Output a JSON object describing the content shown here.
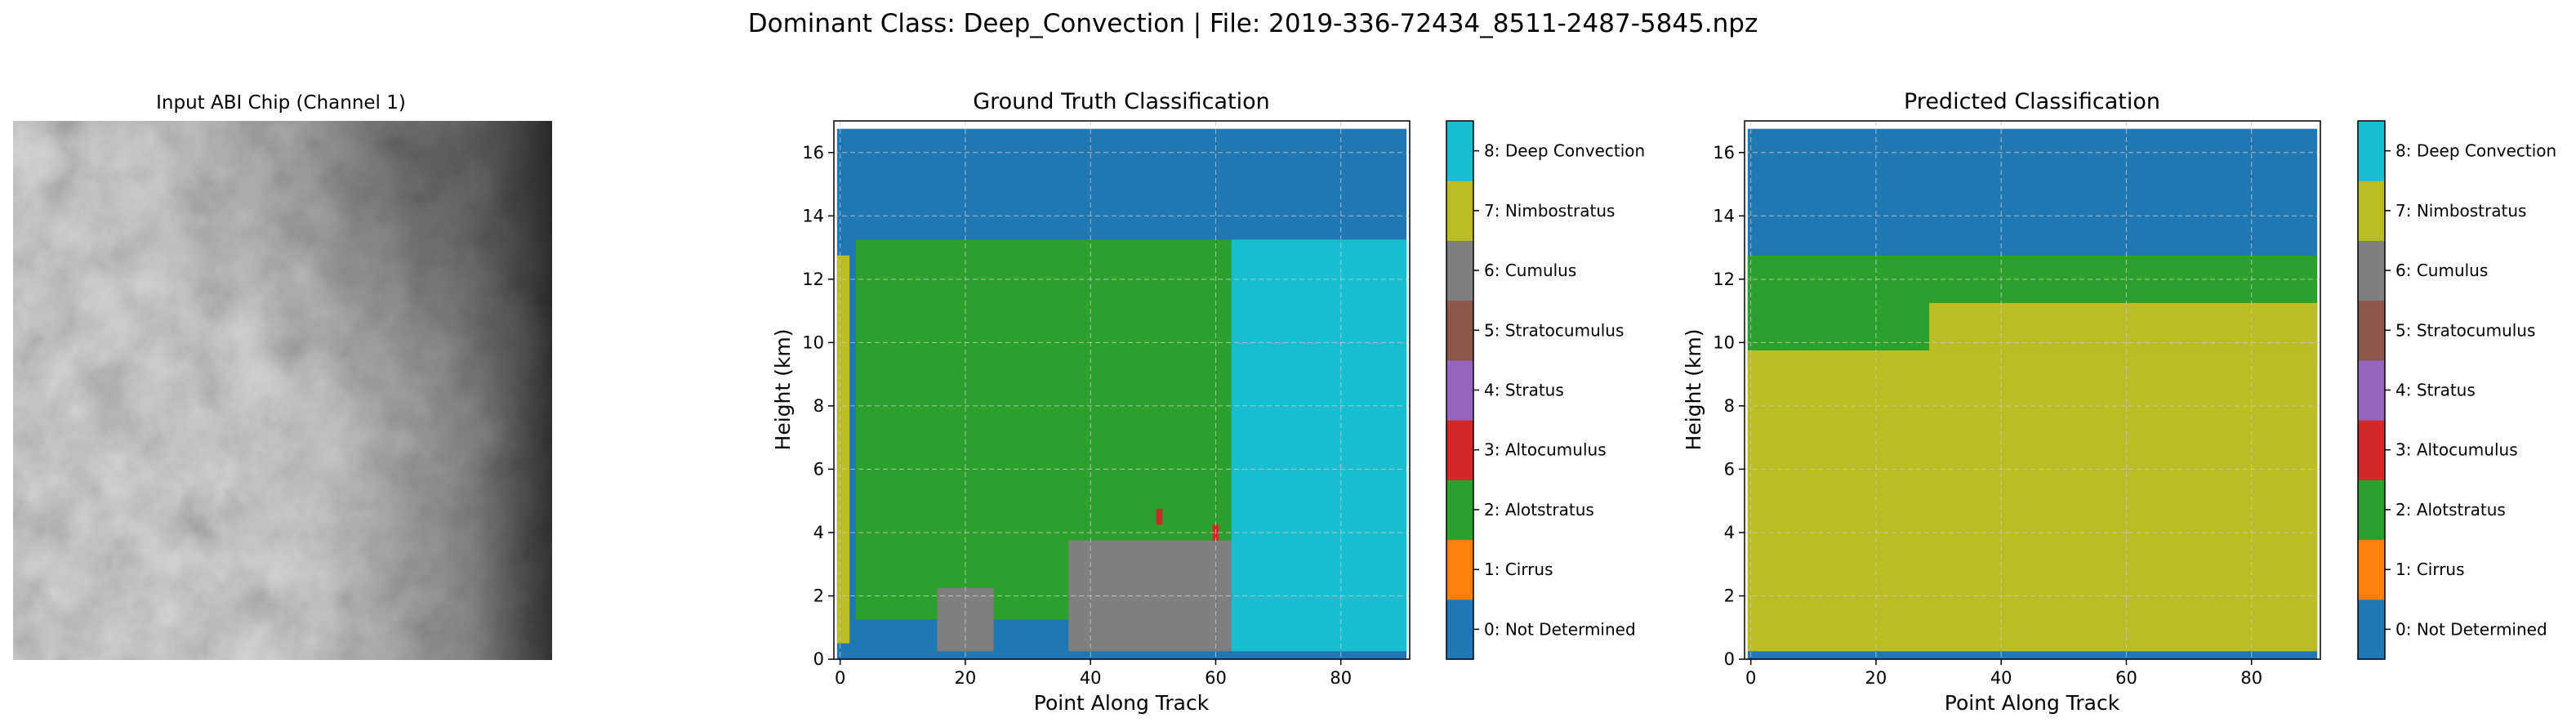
{
  "figure": {
    "suptitle": "Dominant Class: Deep_Convection | File: 2019-336-72434_8511-2487-5845.npz"
  },
  "chart_data": [
    {
      "type": "image",
      "title": "Input ABI Chip (Channel 1)",
      "colormap": "gray"
    },
    {
      "type": "heatmap",
      "title": "Ground Truth Classification",
      "xlabel": "Point Along Track",
      "ylabel": "Height (km)",
      "xlim": [
        -1,
        91
      ],
      "ylim": [
        0,
        17
      ],
      "xticks": [
        0,
        20,
        40,
        60,
        80
      ],
      "yticks": [
        0,
        2,
        4,
        6,
        8,
        10,
        12,
        14,
        16
      ],
      "grid": true,
      "regions": [
        {
          "class": 0,
          "x": [
            -0.5,
            90.5
          ],
          "y": [
            0,
            16.75
          ]
        },
        {
          "class": 2,
          "x": [
            2.5,
            62.5
          ],
          "y": [
            1.25,
            13.25
          ]
        },
        {
          "class": 7,
          "x": [
            -0.5,
            1.5
          ],
          "y": [
            0.5,
            12.75
          ]
        },
        {
          "class": 8,
          "x": [
            62.5,
            90.5
          ],
          "y": [
            0.25,
            13.25
          ]
        },
        {
          "class": 6,
          "x": [
            15.5,
            24.5
          ],
          "y": [
            0.25,
            2.25
          ]
        },
        {
          "class": 6,
          "x": [
            36.5,
            62.5
          ],
          "y": [
            0.25,
            3.75
          ]
        },
        {
          "class": 3,
          "x": [
            50.5,
            51.5
          ],
          "y": [
            4.25,
            4.75
          ]
        },
        {
          "class": 3,
          "x": [
            59.5,
            60.5
          ],
          "y": [
            3.75,
            4.25
          ]
        }
      ]
    },
    {
      "type": "heatmap",
      "title": "Predicted Classification",
      "xlabel": "Point Along Track",
      "ylabel": "Height (km)",
      "xlim": [
        -1,
        91
      ],
      "ylim": [
        0,
        17
      ],
      "xticks": [
        0,
        20,
        40,
        60,
        80
      ],
      "yticks": [
        0,
        2,
        4,
        6,
        8,
        10,
        12,
        14,
        16
      ],
      "grid": true,
      "regions": [
        {
          "class": 0,
          "x": [
            -0.5,
            90.5
          ],
          "y": [
            0,
            16.75
          ]
        },
        {
          "class": 2,
          "x": [
            -0.5,
            90.5
          ],
          "y": [
            9.25,
            12.75
          ]
        },
        {
          "class": 7,
          "x": [
            -0.5,
            90.5
          ],
          "y": [
            0.25,
            9.75
          ]
        },
        {
          "class": 7,
          "x": [
            28.5,
            90.5
          ],
          "y": [
            9.75,
            11.25
          ]
        }
      ]
    }
  ],
  "colorbar": {
    "classes": [
      {
        "id": 0,
        "label": "0: Not Determined",
        "color": "#1f77b4"
      },
      {
        "id": 1,
        "label": "1: Cirrus",
        "color": "#ff7f0e"
      },
      {
        "id": 2,
        "label": "2: Alotstratus",
        "color": "#2ca02c"
      },
      {
        "id": 3,
        "label": "3: Altocumulus",
        "color": "#d62728"
      },
      {
        "id": 4,
        "label": "4: Stratus",
        "color": "#9467bd"
      },
      {
        "id": 5,
        "label": "5: Stratocumulus",
        "color": "#8c564b"
      },
      {
        "id": 6,
        "label": "6: Cumulus",
        "color": "#7f7f7f"
      },
      {
        "id": 7,
        "label": "7: Nimbostratus",
        "color": "#bcbd22"
      },
      {
        "id": 8,
        "label": "8: Deep Convection",
        "color": "#17becf"
      }
    ]
  }
}
